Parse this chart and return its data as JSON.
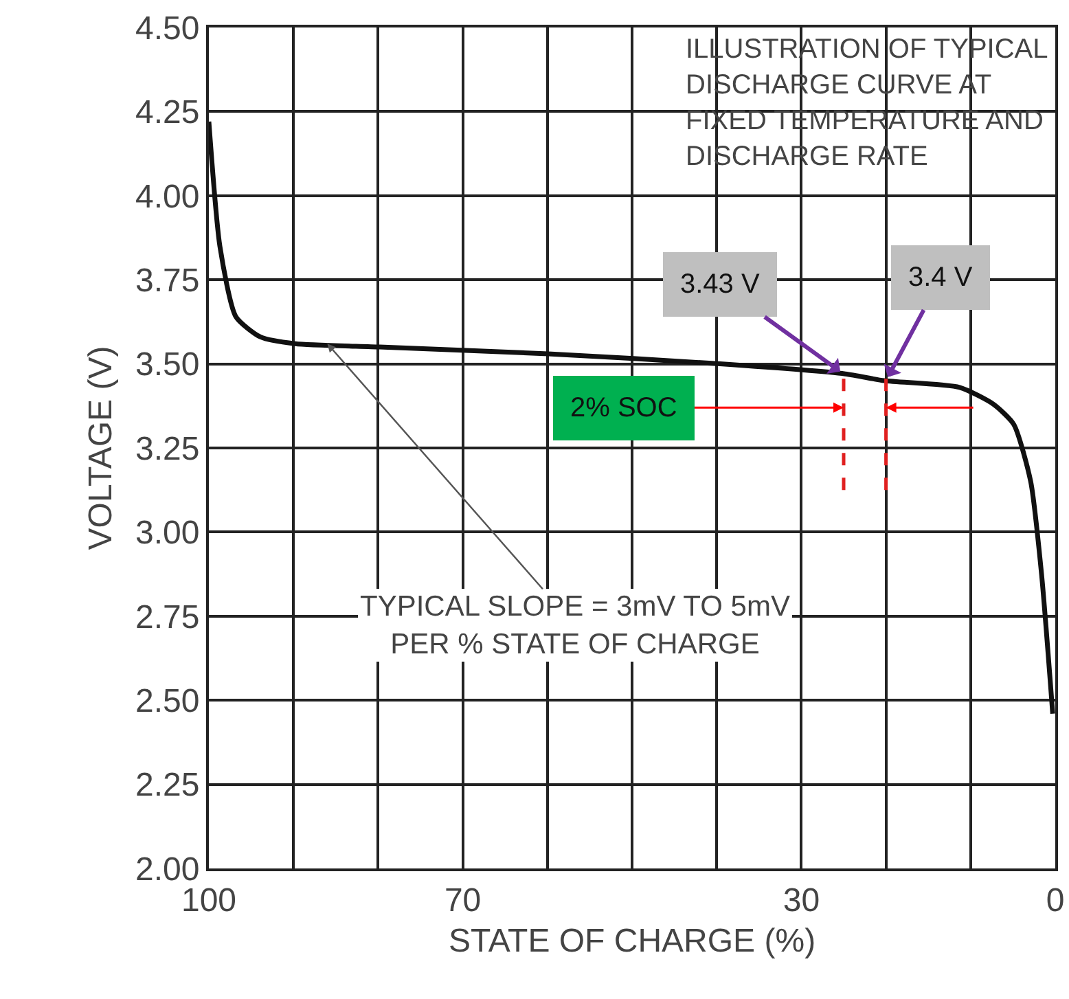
{
  "chart_data": {
    "type": "line",
    "title": "ILLUSTRATION OF TYPICAL\nDISCHARGE CURVE AT\nFIXED TEMPERATURE AND\nDISCHARGE RATE",
    "xlabel": "STATE OF CHARGE (%)",
    "ylabel": "VOLTAGE (V)",
    "x": [
      100,
      98.7,
      96.8,
      93.9,
      89.8,
      79.8,
      59.9,
      39.6,
      24.8,
      20.2,
      11.3,
      7.3,
      4.9,
      2.9,
      1.6,
      0.3
    ],
    "series": [
      {
        "color": "#111111",
        "values": [
          4.22,
          3.85,
          3.64,
          3.58,
          3.56,
          3.55,
          3.53,
          3.5,
          3.47,
          3.45,
          3.43,
          3.38,
          3.32,
          3.15,
          2.87,
          2.46
        ]
      }
    ],
    "xlim": [
      100,
      0
    ],
    "ylim": [
      2,
      4.5
    ],
    "xticks": [
      100,
      {
        "value": 90,
        "label": null
      },
      {
        "value": 80,
        "label": null
      },
      70,
      {
        "value": 60,
        "label": null
      },
      {
        "value": 50,
        "label": null
      },
      {
        "value": 40,
        "label": null
      },
      30,
      {
        "value": 20,
        "label": null
      },
      {
        "value": 10,
        "label": null
      },
      0
    ],
    "yticks": [
      {
        "value": 2,
        "label": "2.00"
      },
      {
        "value": 2.25,
        "label": "2.25"
      },
      {
        "value": 2.5,
        "label": "2.50"
      },
      {
        "value": 2.75,
        "label": "2.75"
      },
      {
        "value": 3,
        "label": "3.00"
      },
      {
        "value": 3.25,
        "label": "3.25"
      },
      {
        "value": 3.5,
        "label": "3.50"
      },
      {
        "value": 3.75,
        "label": "3.75"
      },
      {
        "value": 4,
        "label": "4.00"
      },
      {
        "value": 4.25,
        "label": "4.25"
      },
      {
        "value": 4.5,
        "label": "4.50"
      }
    ],
    "grid": true,
    "marker": "none",
    "line_style": "solid",
    "ref_lines": [
      {
        "axis": "x",
        "value": 25,
        "color": "#e02020",
        "line_style": "dashed"
      },
      {
        "axis": "x",
        "value": 20,
        "color": "#e02020",
        "line_style": "dashed"
      }
    ],
    "annotations": [
      {
        "text": "3.43 V",
        "x": 25,
        "y": 3.47
      },
      {
        "text": "3.4 V",
        "x": 20,
        "y": 3.45
      },
      {
        "text": "2% SOC",
        "x": 25,
        "y": 3.37
      },
      {
        "text": "TYPICAL SLOPE = 3mV TO 5mV\nPER % STATE OF CHARGE",
        "x": 86,
        "y": 3.56
      }
    ]
  }
}
